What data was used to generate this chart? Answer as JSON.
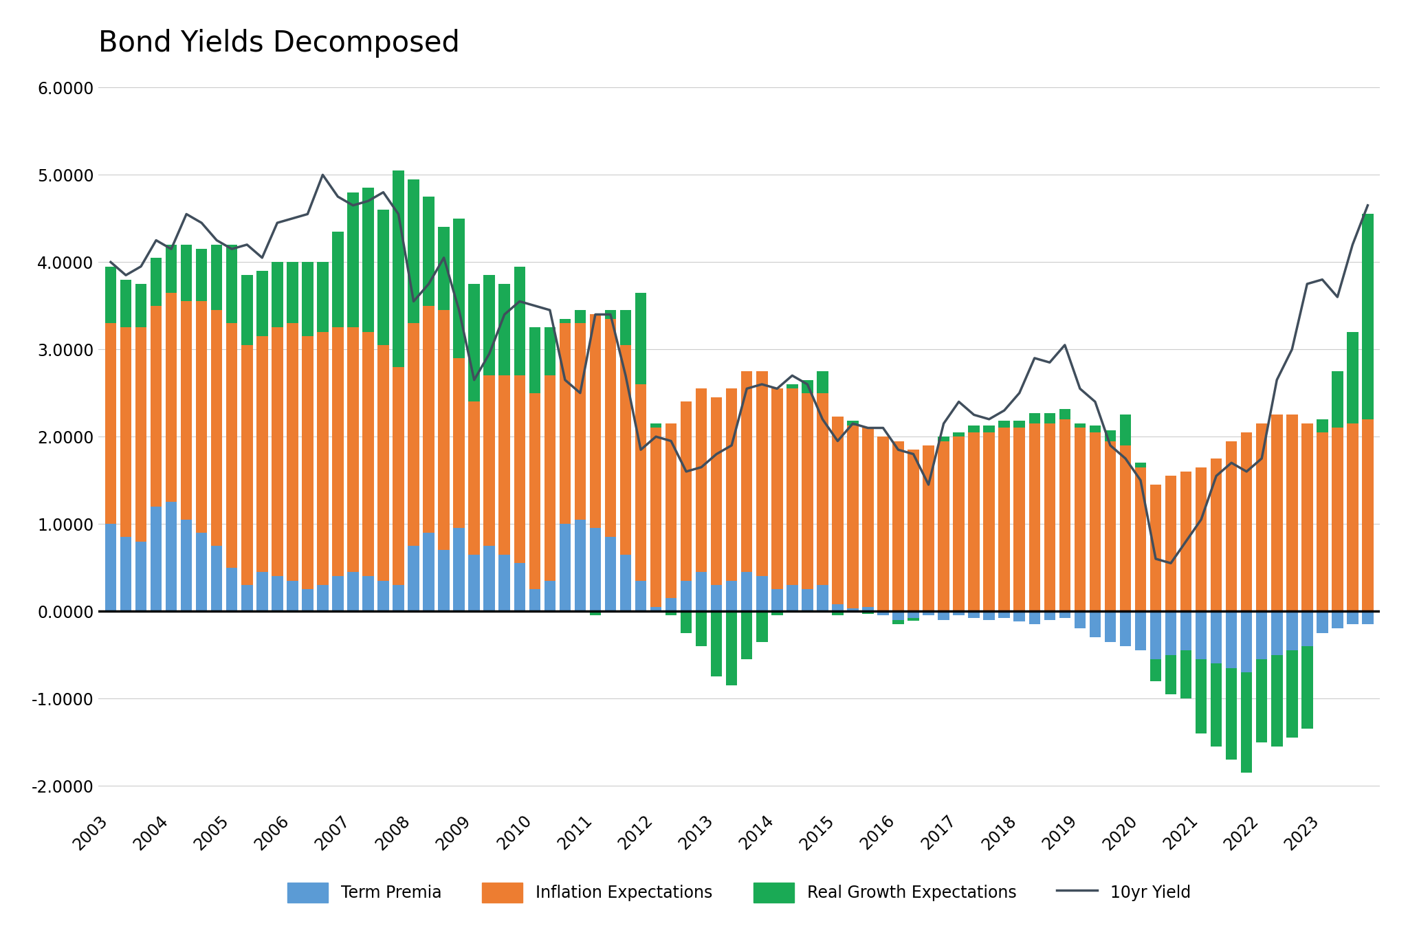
{
  "title": "Bond Yields Decomposed",
  "background_color": "#ffffff",
  "bar_width": 0.75,
  "ylim": [
    -2.25,
    6.25
  ],
  "yticks": [
    -2.0,
    -1.0,
    0.0,
    1.0,
    2.0,
    3.0,
    4.0,
    5.0,
    6.0
  ],
  "ytick_labels": [
    "-2.0000",
    "-1.0000",
    "0.0000",
    "1.0000",
    "2.0000",
    "3.0000",
    "4.0000",
    "5.0000",
    "6.0000"
  ],
  "colors": {
    "term_premia": "#5b9bd5",
    "inflation": "#ed7d31",
    "real_growth": "#1aaa55",
    "yield_line": "#404e5c",
    "zero_line": "#000000",
    "grid": "#cccccc",
    "background": "#ffffff"
  },
  "legend": {
    "term_premia": "Term Premia",
    "inflation": "Inflation Expectations",
    "real_growth": "Real Growth Expectations",
    "yield": "10yr Yield"
  },
  "xtick_labels": [
    "2003",
    "2004",
    "2005",
    "2006",
    "2007",
    "2008",
    "2009",
    "2010",
    "2011",
    "2012",
    "2013",
    "2014",
    "2015",
    "2016",
    "2017",
    "2018",
    "2019",
    "2020",
    "2021",
    "2022",
    "2023"
  ],
  "n_per_year": 4,
  "term_premia": [
    1.0,
    0.85,
    0.8,
    1.2,
    1.25,
    1.05,
    0.9,
    0.75,
    0.5,
    0.3,
    0.45,
    0.4,
    0.35,
    0.25,
    0.3,
    0.4,
    0.45,
    0.4,
    0.35,
    0.3,
    0.75,
    0.9,
    0.7,
    0.95,
    0.65,
    0.75,
    0.65,
    0.55,
    0.25,
    0.35,
    1.0,
    1.05,
    0.95,
    0.85,
    0.65,
    0.35,
    0.05,
    0.15,
    0.35,
    0.45,
    0.3,
    0.35,
    0.45,
    0.4,
    0.25,
    0.3,
    0.25,
    0.3,
    0.08,
    0.03,
    0.05,
    -0.05,
    -0.1,
    -0.08,
    -0.05,
    -0.1,
    -0.05,
    -0.08,
    -0.1,
    -0.08,
    -0.12,
    -0.15,
    -0.1,
    -0.08,
    -0.2,
    -0.3,
    -0.35,
    -0.4,
    -0.45,
    -0.55,
    -0.5,
    -0.45,
    -0.55,
    -0.6,
    -0.65,
    -0.7,
    -0.55,
    -0.5,
    -0.45,
    -0.4,
    -0.25,
    -0.2,
    -0.15,
    -0.15
  ],
  "inflation": [
    2.3,
    2.4,
    2.45,
    2.3,
    2.4,
    2.5,
    2.65,
    2.7,
    2.8,
    2.75,
    2.7,
    2.85,
    2.95,
    2.9,
    2.9,
    2.85,
    2.8,
    2.8,
    2.7,
    2.5,
    2.55,
    2.6,
    2.75,
    1.95,
    1.75,
    1.95,
    2.05,
    2.15,
    2.25,
    2.35,
    2.3,
    2.25,
    2.45,
    2.5,
    2.4,
    2.25,
    2.05,
    2.0,
    2.05,
    2.1,
    2.15,
    2.2,
    2.3,
    2.35,
    2.3,
    2.25,
    2.25,
    2.2,
    2.15,
    2.1,
    2.05,
    2.0,
    1.95,
    1.85,
    1.9,
    1.95,
    2.0,
    2.05,
    2.05,
    2.1,
    2.1,
    2.15,
    2.15,
    2.2,
    2.1,
    2.05,
    1.95,
    1.9,
    1.65,
    1.45,
    1.55,
    1.6,
    1.65,
    1.75,
    1.95,
    2.05,
    2.15,
    2.25,
    2.25,
    2.15,
    2.05,
    2.1,
    2.15,
    2.2
  ],
  "real_growth": [
    0.65,
    0.55,
    0.5,
    0.55,
    0.55,
    0.65,
    0.6,
    0.75,
    0.9,
    0.8,
    0.75,
    0.75,
    0.7,
    0.85,
    0.8,
    1.1,
    1.55,
    1.65,
    1.55,
    2.25,
    1.65,
    1.25,
    0.95,
    1.6,
    1.35,
    1.15,
    1.05,
    1.25,
    0.75,
    0.55,
    0.05,
    0.15,
    -0.05,
    0.1,
    0.4,
    1.05,
    0.05,
    -0.05,
    -0.25,
    -0.4,
    -0.75,
    -0.85,
    -0.55,
    -0.35,
    -0.05,
    0.05,
    0.15,
    0.25,
    -0.05,
    0.05,
    -0.03,
    0.0,
    -0.05,
    -0.03,
    0.0,
    0.05,
    0.05,
    0.08,
    0.08,
    0.08,
    0.08,
    0.12,
    0.12,
    0.12,
    0.05,
    0.08,
    0.12,
    0.35,
    0.05,
    -0.25,
    -0.45,
    -0.55,
    -0.85,
    -0.95,
    -1.05,
    -1.15,
    -0.95,
    -1.05,
    -1.0,
    -0.95,
    0.15,
    0.65,
    1.05,
    2.35
  ],
  "yield_10yr": [
    4.0,
    3.85,
    3.95,
    4.25,
    4.15,
    4.55,
    4.45,
    4.25,
    4.15,
    4.2,
    4.05,
    4.45,
    4.5,
    4.55,
    5.0,
    4.75,
    4.65,
    4.7,
    4.8,
    4.55,
    3.55,
    3.75,
    4.05,
    3.45,
    2.65,
    2.95,
    3.4,
    3.55,
    3.5,
    3.45,
    2.65,
    2.5,
    3.4,
    3.4,
    2.7,
    1.85,
    2.0,
    1.95,
    1.6,
    1.65,
    1.8,
    1.9,
    2.55,
    2.6,
    2.55,
    2.7,
    2.6,
    2.2,
    1.95,
    2.15,
    2.1,
    2.1,
    1.85,
    1.8,
    1.45,
    2.15,
    2.4,
    2.25,
    2.2,
    2.3,
    2.5,
    2.9,
    2.85,
    3.05,
    2.55,
    2.4,
    1.9,
    1.75,
    1.5,
    0.6,
    0.55,
    0.8,
    1.05,
    1.55,
    1.7,
    1.6,
    1.75,
    2.65,
    3.0,
    3.75,
    3.8,
    3.6,
    4.2,
    4.65
  ]
}
